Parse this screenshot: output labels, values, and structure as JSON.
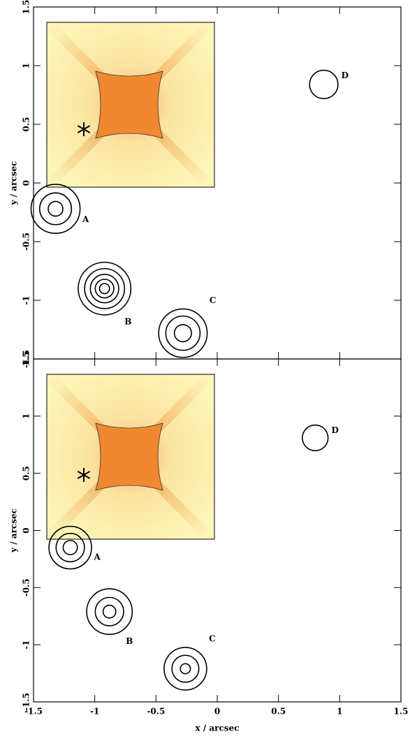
{
  "chart_data": [
    {
      "type": "contour",
      "ylabel": "y / arcsec",
      "xlim": [
        -1.5,
        1.5
      ],
      "ylim": [
        -1.5,
        1.5
      ],
      "xticks": [
        -1.5,
        -1,
        -0.5,
        0,
        0.5,
        1,
        1.5
      ],
      "yticks": [
        -1.5,
        -1,
        -0.5,
        0,
        0.5,
        1,
        1.5
      ],
      "series": [
        {
          "name": "A",
          "x": -1.32,
          "y": -0.22,
          "radii": [
            0.2,
            0.13,
            0.06
          ]
        },
        {
          "name": "B",
          "x": -0.92,
          "y": -0.9,
          "radii": [
            0.215,
            0.163,
            0.116,
            0.076,
            0.041
          ]
        },
        {
          "name": "C",
          "x": -0.28,
          "y": -1.28,
          "radii": [
            0.198,
            0.14,
            0.07
          ]
        },
        {
          "name": "D",
          "x": 0.87,
          "y": 0.84,
          "radii": [
            0.116
          ]
        }
      ]
    },
    {
      "type": "contour",
      "xlabel": "x / arcsec",
      "ylabel": "y / arcsec",
      "xlim": [
        -1.5,
        1.5
      ],
      "ylim": [
        -1.5,
        1.5
      ],
      "xticks": [
        -1.5,
        -1,
        -0.5,
        0,
        0.5,
        1,
        1.5
      ],
      "yticks": [
        -1.5,
        -1,
        -0.5,
        0,
        0.5,
        1,
        1.5
      ],
      "series": [
        {
          "name": "A",
          "x": -1.2,
          "y": -0.15,
          "radii": [
            0.174,
            0.116,
            0.058
          ]
        },
        {
          "name": "B",
          "x": -0.88,
          "y": -0.71,
          "radii": [
            0.186,
            0.116,
            0.052
          ]
        },
        {
          "name": "C",
          "x": -0.26,
          "y": -1.21,
          "radii": [
            0.174,
            0.11,
            0.041
          ]
        },
        {
          "name": "D",
          "x": 0.8,
          "y": 0.81,
          "radii": [
            0.105
          ]
        }
      ]
    }
  ]
}
